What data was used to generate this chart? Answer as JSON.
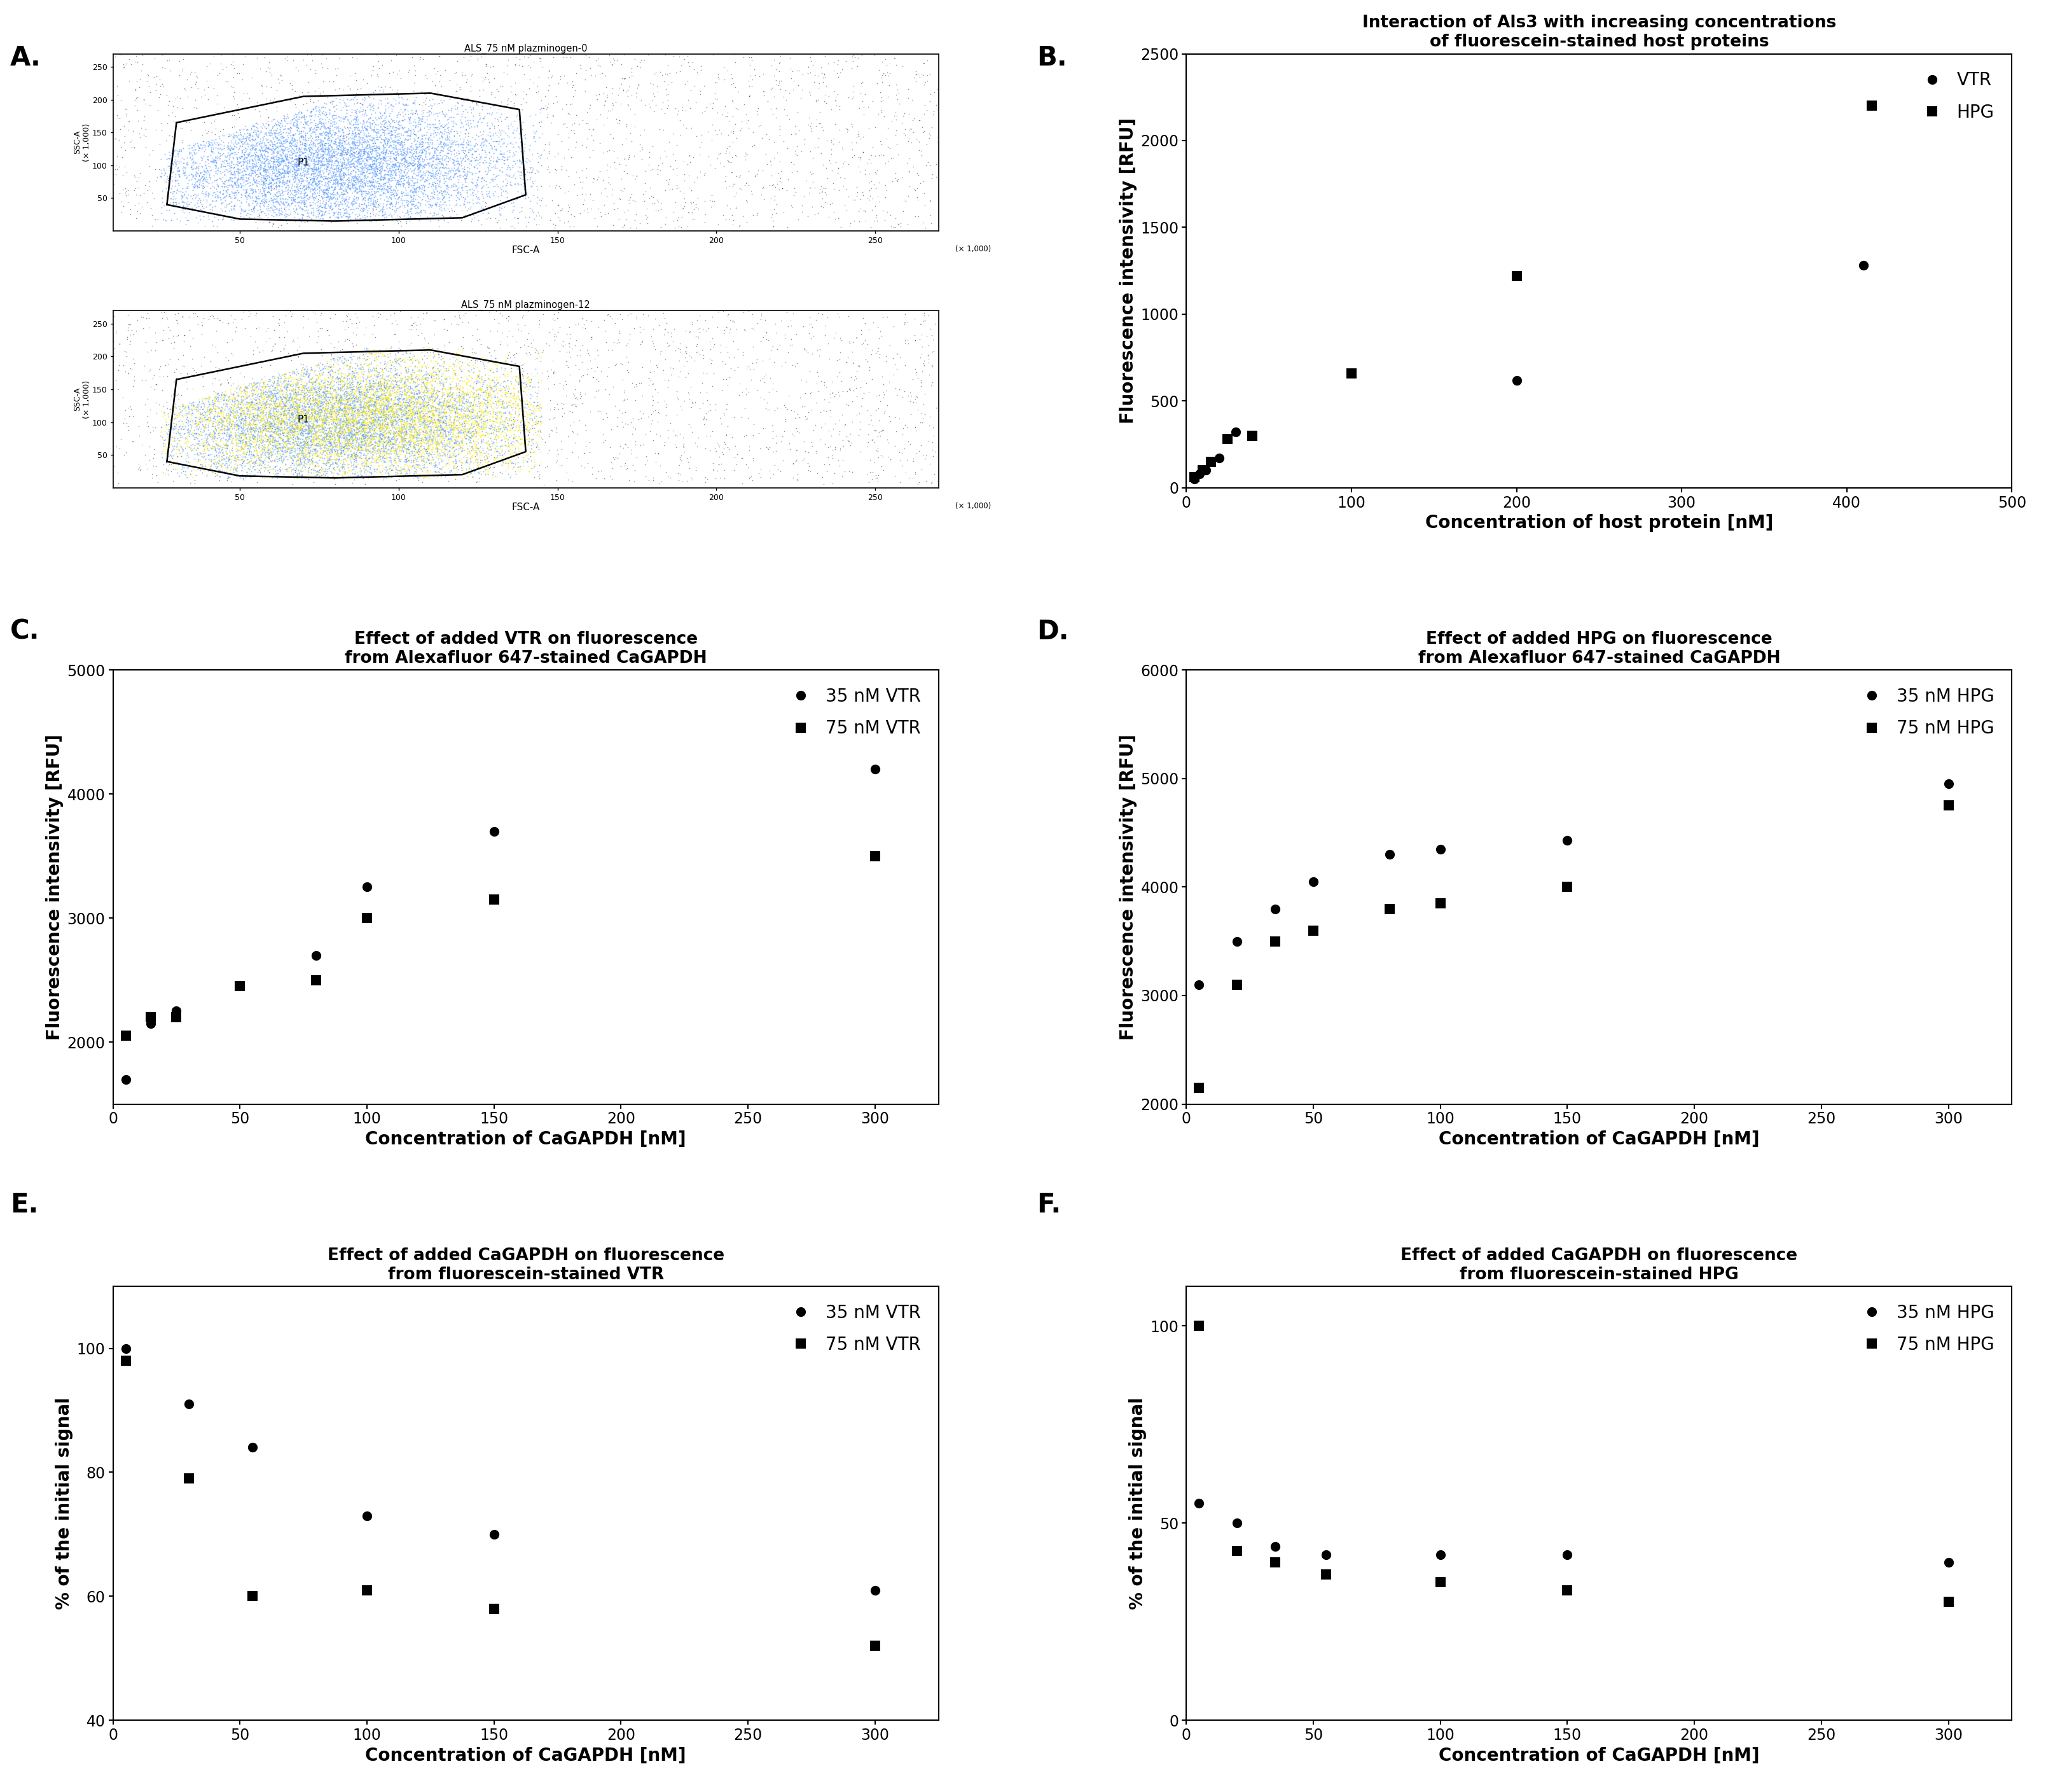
{
  "panel_B": {
    "title_line1": "Interaction of Als3 with increasing concentrations",
    "title_line2": "of fluorescein-stained host proteins",
    "xlabel": "Concentration of host protein [nM]",
    "ylabel": "Fluorescence intensivity [RFU]",
    "xlim": [
      0,
      500
    ],
    "ylim": [
      0,
      2500
    ],
    "xticks": [
      0,
      100,
      200,
      300,
      400,
      500
    ],
    "yticks": [
      0,
      500,
      1000,
      1500,
      2000,
      2500
    ],
    "VTR_x": [
      5,
      8,
      12,
      20,
      30,
      200,
      410
    ],
    "VTR_y": [
      50,
      80,
      100,
      170,
      320,
      620,
      1280
    ],
    "HPG_x": [
      5,
      10,
      15,
      25,
      40,
      100,
      200,
      415
    ],
    "HPG_y": [
      60,
      100,
      150,
      280,
      300,
      660,
      1220,
      2200
    ],
    "legend_labels": [
      "VTR",
      "HPG"
    ]
  },
  "panel_C": {
    "title_line1": "Effect of added VTR on fluorescence",
    "title_line2": "from Alexafluor 647-stained CaGAPDH",
    "xlabel": "Concentration of CaGAPDH [nM]",
    "ylabel": "Fluorescence intensivity [RFU]",
    "xlim": [
      0,
      325
    ],
    "ylim": [
      1500,
      5000
    ],
    "xticks": [
      0,
      50,
      100,
      150,
      200,
      250,
      300
    ],
    "yticks": [
      2000,
      3000,
      4000,
      5000
    ],
    "s35_x": [
      5,
      15,
      25,
      50,
      80,
      100,
      150,
      300
    ],
    "s35_y": [
      1700,
      2150,
      2250,
      2450,
      2700,
      3250,
      3700,
      4200
    ],
    "s75_x": [
      5,
      15,
      25,
      50,
      80,
      100,
      150,
      300
    ],
    "s75_y": [
      2050,
      2200,
      2200,
      2450,
      2500,
      3000,
      3150,
      3500
    ],
    "legend_labels": [
      "35 nM VTR",
      "75 nM VTR"
    ]
  },
  "panel_D": {
    "title_line1": "Effect of added HPG on fluorescence",
    "title_line2": "from Alexafluor 647-stained CaGAPDH",
    "xlabel": "Concentration of CaGAPDH [nM]",
    "ylabel": "Fluorescence intensivity [RFU]",
    "xlim": [
      0,
      325
    ],
    "ylim": [
      2000,
      6000
    ],
    "xticks": [
      0,
      50,
      100,
      150,
      200,
      250,
      300
    ],
    "yticks": [
      2000,
      3000,
      4000,
      5000,
      6000
    ],
    "s35_x": [
      5,
      20,
      35,
      50,
      80,
      100,
      150,
      300
    ],
    "s35_y": [
      3100,
      3500,
      3800,
      4050,
      4300,
      4350,
      4430,
      4950
    ],
    "s75_x": [
      5,
      20,
      35,
      50,
      80,
      100,
      150,
      300
    ],
    "s75_y": [
      2150,
      3100,
      3500,
      3600,
      3800,
      3850,
      4000,
      4750
    ],
    "legend_labels": [
      "35 nM HPG",
      "75 nM HPG"
    ]
  },
  "panel_E": {
    "title_line1": "Effect of added CaGAPDH on fluorescence",
    "title_line2": "from fluorescein-stained VTR",
    "xlabel": "Concentration of CaGAPDH [nM]",
    "ylabel": "% of the initial signal",
    "xlim": [
      0,
      325
    ],
    "ylim": [
      40,
      110
    ],
    "xticks": [
      0,
      50,
      100,
      150,
      200,
      250,
      300
    ],
    "yticks": [
      40,
      60,
      80,
      100
    ],
    "s35_x": [
      5,
      30,
      55,
      100,
      150,
      300
    ],
    "s35_y": [
      100,
      91,
      84,
      73,
      70,
      61
    ],
    "s75_x": [
      5,
      30,
      55,
      100,
      150,
      300
    ],
    "s75_y": [
      98,
      79,
      60,
      61,
      58,
      52
    ],
    "legend_labels": [
      "35 nM VTR",
      "75 nM VTR"
    ]
  },
  "panel_F": {
    "title_line1": "Effect of added CaGAPDH on fluorescence",
    "title_line2": "from fluorescein-stained HPG",
    "xlabel": "Concentration of CaGAPDH [nM]",
    "ylabel": "% of the initial signal",
    "xlim": [
      0,
      325
    ],
    "ylim": [
      0,
      110
    ],
    "xticks": [
      0,
      50,
      100,
      150,
      200,
      250,
      300
    ],
    "yticks": [
      0,
      50,
      100
    ],
    "s35_x": [
      5,
      20,
      35,
      55,
      100,
      150,
      300
    ],
    "s35_y": [
      55,
      50,
      44,
      42,
      42,
      42,
      40
    ],
    "s75_x": [
      5,
      20,
      35,
      55,
      100,
      150,
      300
    ],
    "s75_y": [
      100,
      43,
      40,
      37,
      35,
      33,
      30
    ],
    "legend_labels": [
      "35 nM HPG",
      "75 nM HPG"
    ]
  },
  "label_fontsize": 20,
  "title_fontsize": 19,
  "tick_fontsize": 17,
  "marker_size": 11,
  "panel_label_fontsize": 30,
  "background_color": "#ffffff",
  "marker_color": "#000000",
  "spine_linewidth": 1.5
}
